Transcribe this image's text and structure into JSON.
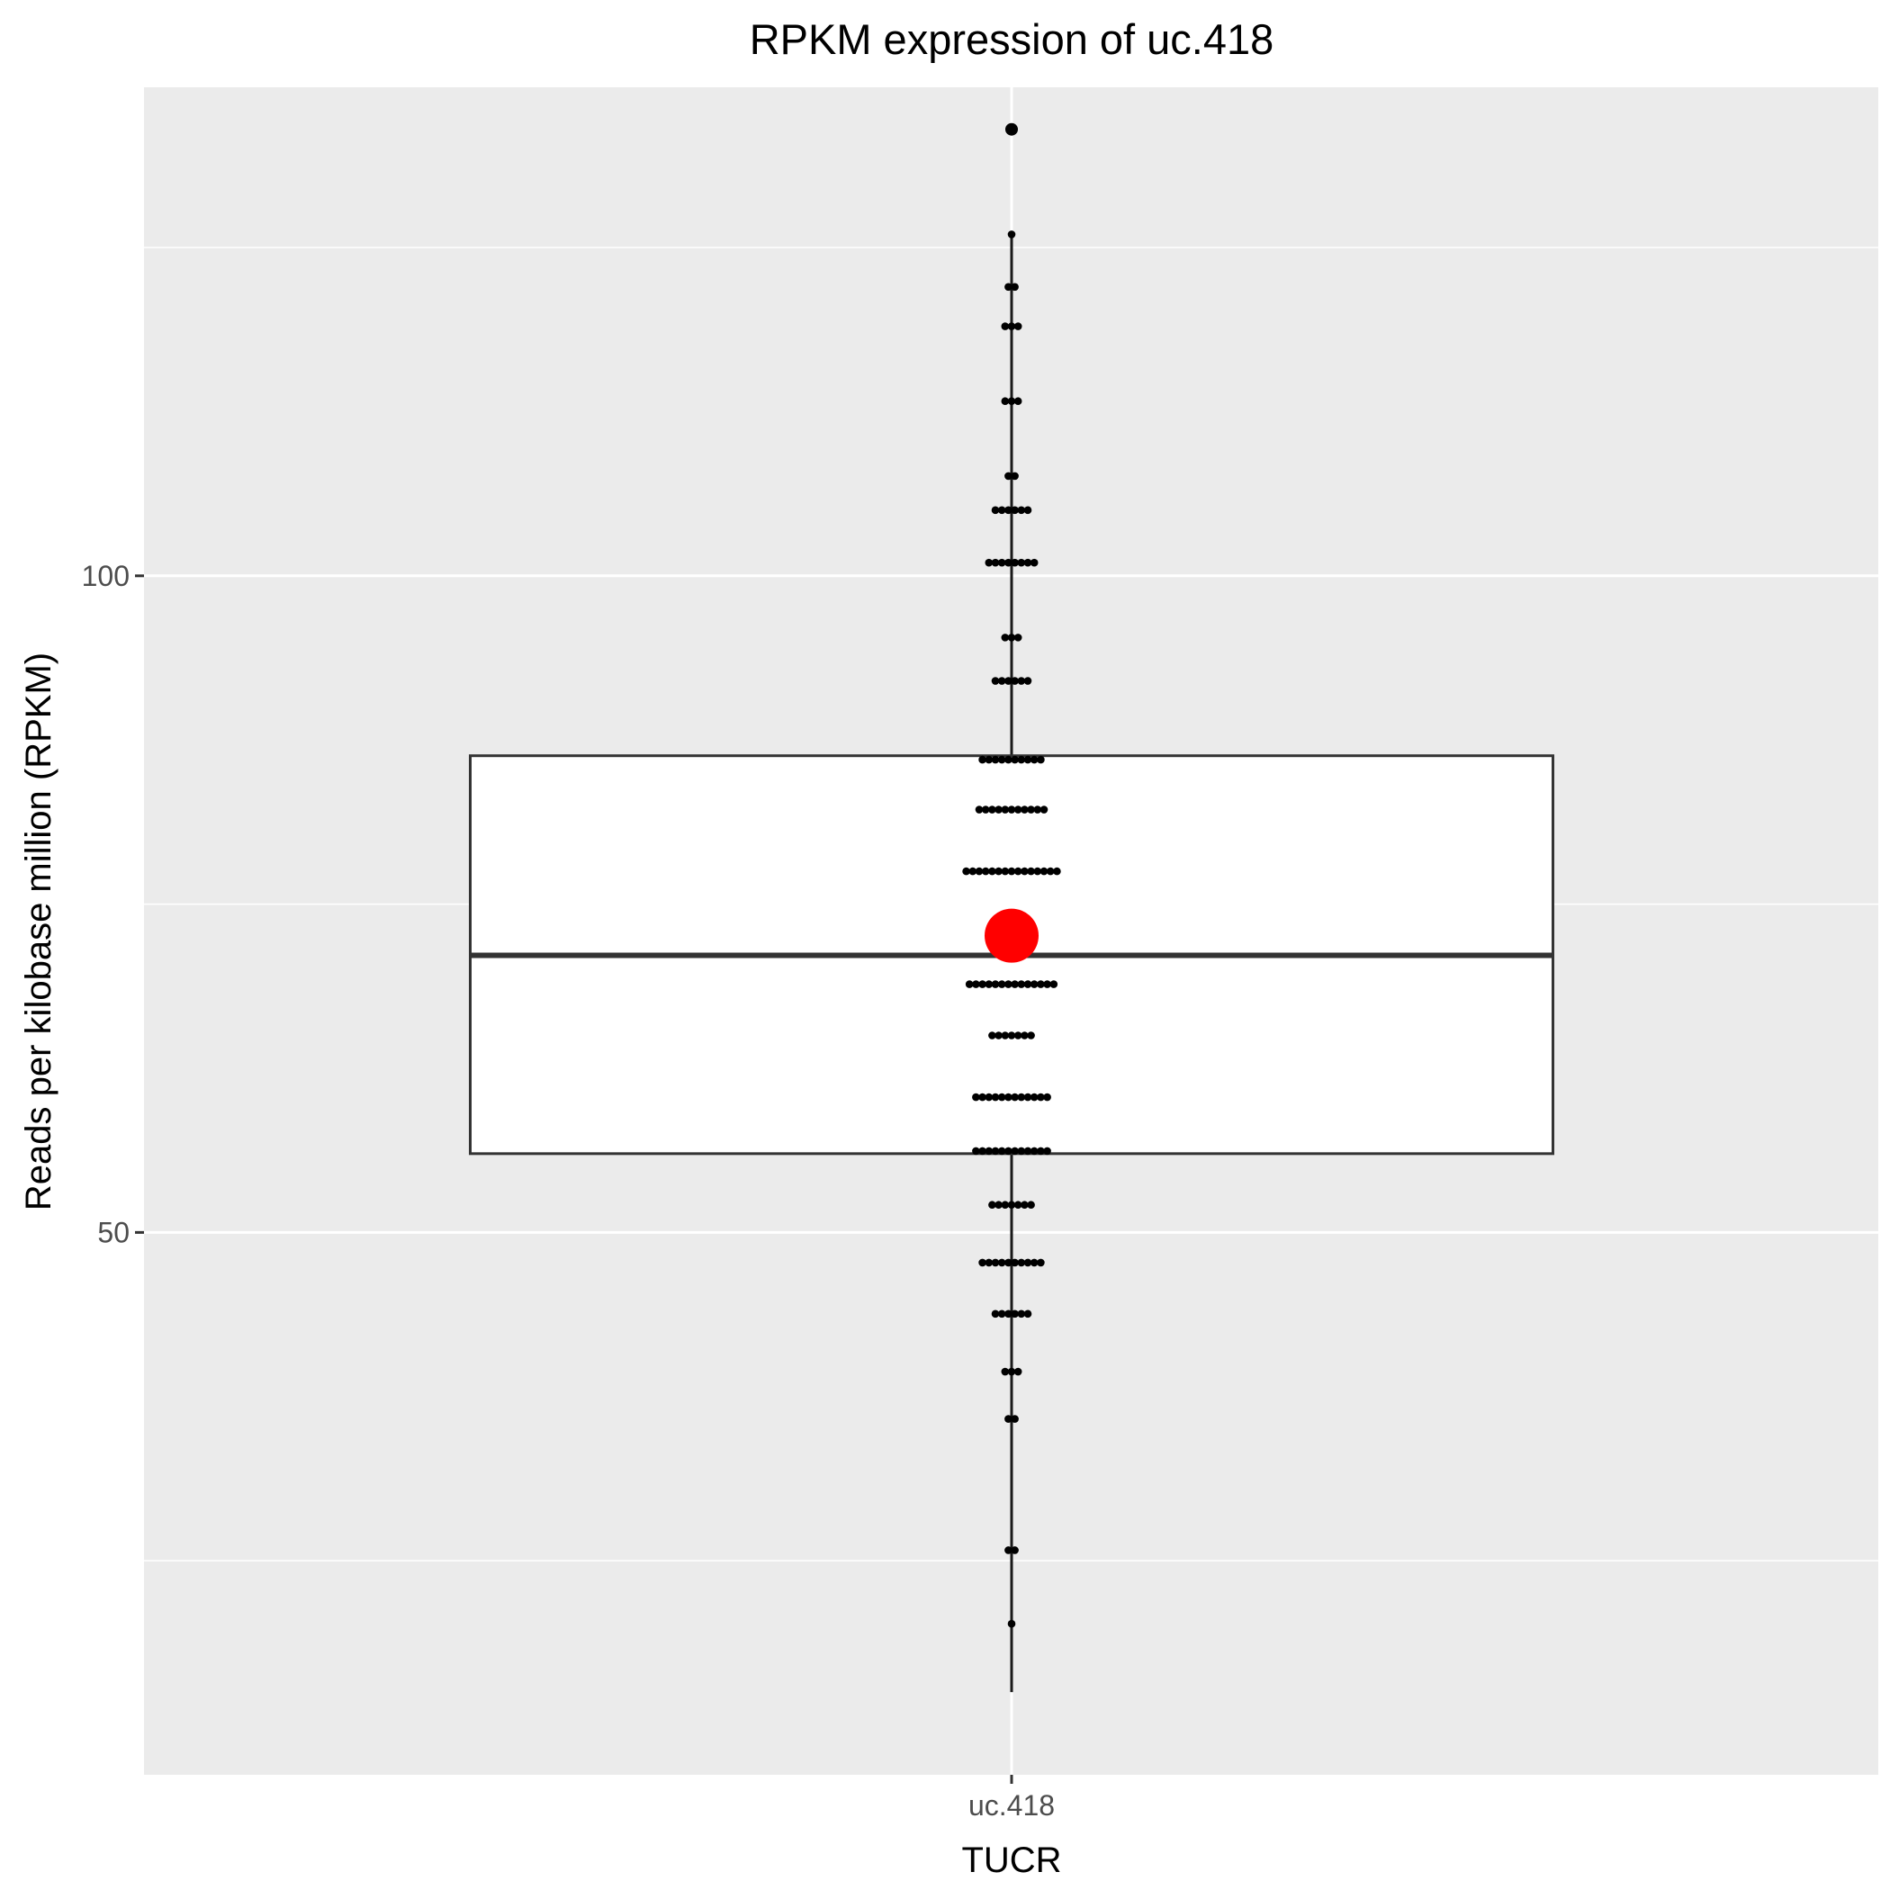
{
  "chart_data": {
    "type": "box",
    "title": "RPKM expression of  uc.418",
    "xlabel": "TUCR",
    "ylabel": "Reads per kilobase million (RPKM)",
    "categories": [
      "uc.418"
    ],
    "y_ticks": [
      50,
      100
    ],
    "ylim": [
      8.7,
      137.2
    ],
    "grid": true,
    "box": {
      "category": "uc.418",
      "whisker_low": 15.0,
      "q1": 56.0,
      "median": 71.1,
      "q3": 86.3,
      "whisker_high": 126.0,
      "outliers": [
        134.0
      ]
    },
    "mean": 72.6,
    "mean_color": "#ff0000",
    "point_color": "#000000",
    "points": [
      {
        "y": 134.0,
        "count": 1
      },
      {
        "y": 126.0,
        "count": 1
      },
      {
        "y": 122.0,
        "count": 2
      },
      {
        "y": 119.0,
        "count": 3
      },
      {
        "y": 113.3,
        "count": 3
      },
      {
        "y": 107.6,
        "count": 2
      },
      {
        "y": 105.0,
        "count": 6
      },
      {
        "y": 101.0,
        "count": 8
      },
      {
        "y": 95.3,
        "count": 3
      },
      {
        "y": 92.0,
        "count": 6
      },
      {
        "y": 86.0,
        "count": 10
      },
      {
        "y": 82.2,
        "count": 11
      },
      {
        "y": 77.5,
        "count": 15
      },
      {
        "y": 72.7,
        "count": 8
      },
      {
        "y": 68.9,
        "count": 14
      },
      {
        "y": 65.0,
        "count": 7
      },
      {
        "y": 60.3,
        "count": 12
      },
      {
        "y": 56.2,
        "count": 12
      },
      {
        "y": 52.1,
        "count": 7
      },
      {
        "y": 47.7,
        "count": 10
      },
      {
        "y": 43.8,
        "count": 6
      },
      {
        "y": 39.4,
        "count": 3
      },
      {
        "y": 35.8,
        "count": 2
      },
      {
        "y": 25.8,
        "count": 2
      },
      {
        "y": 20.2,
        "count": 1
      }
    ]
  }
}
